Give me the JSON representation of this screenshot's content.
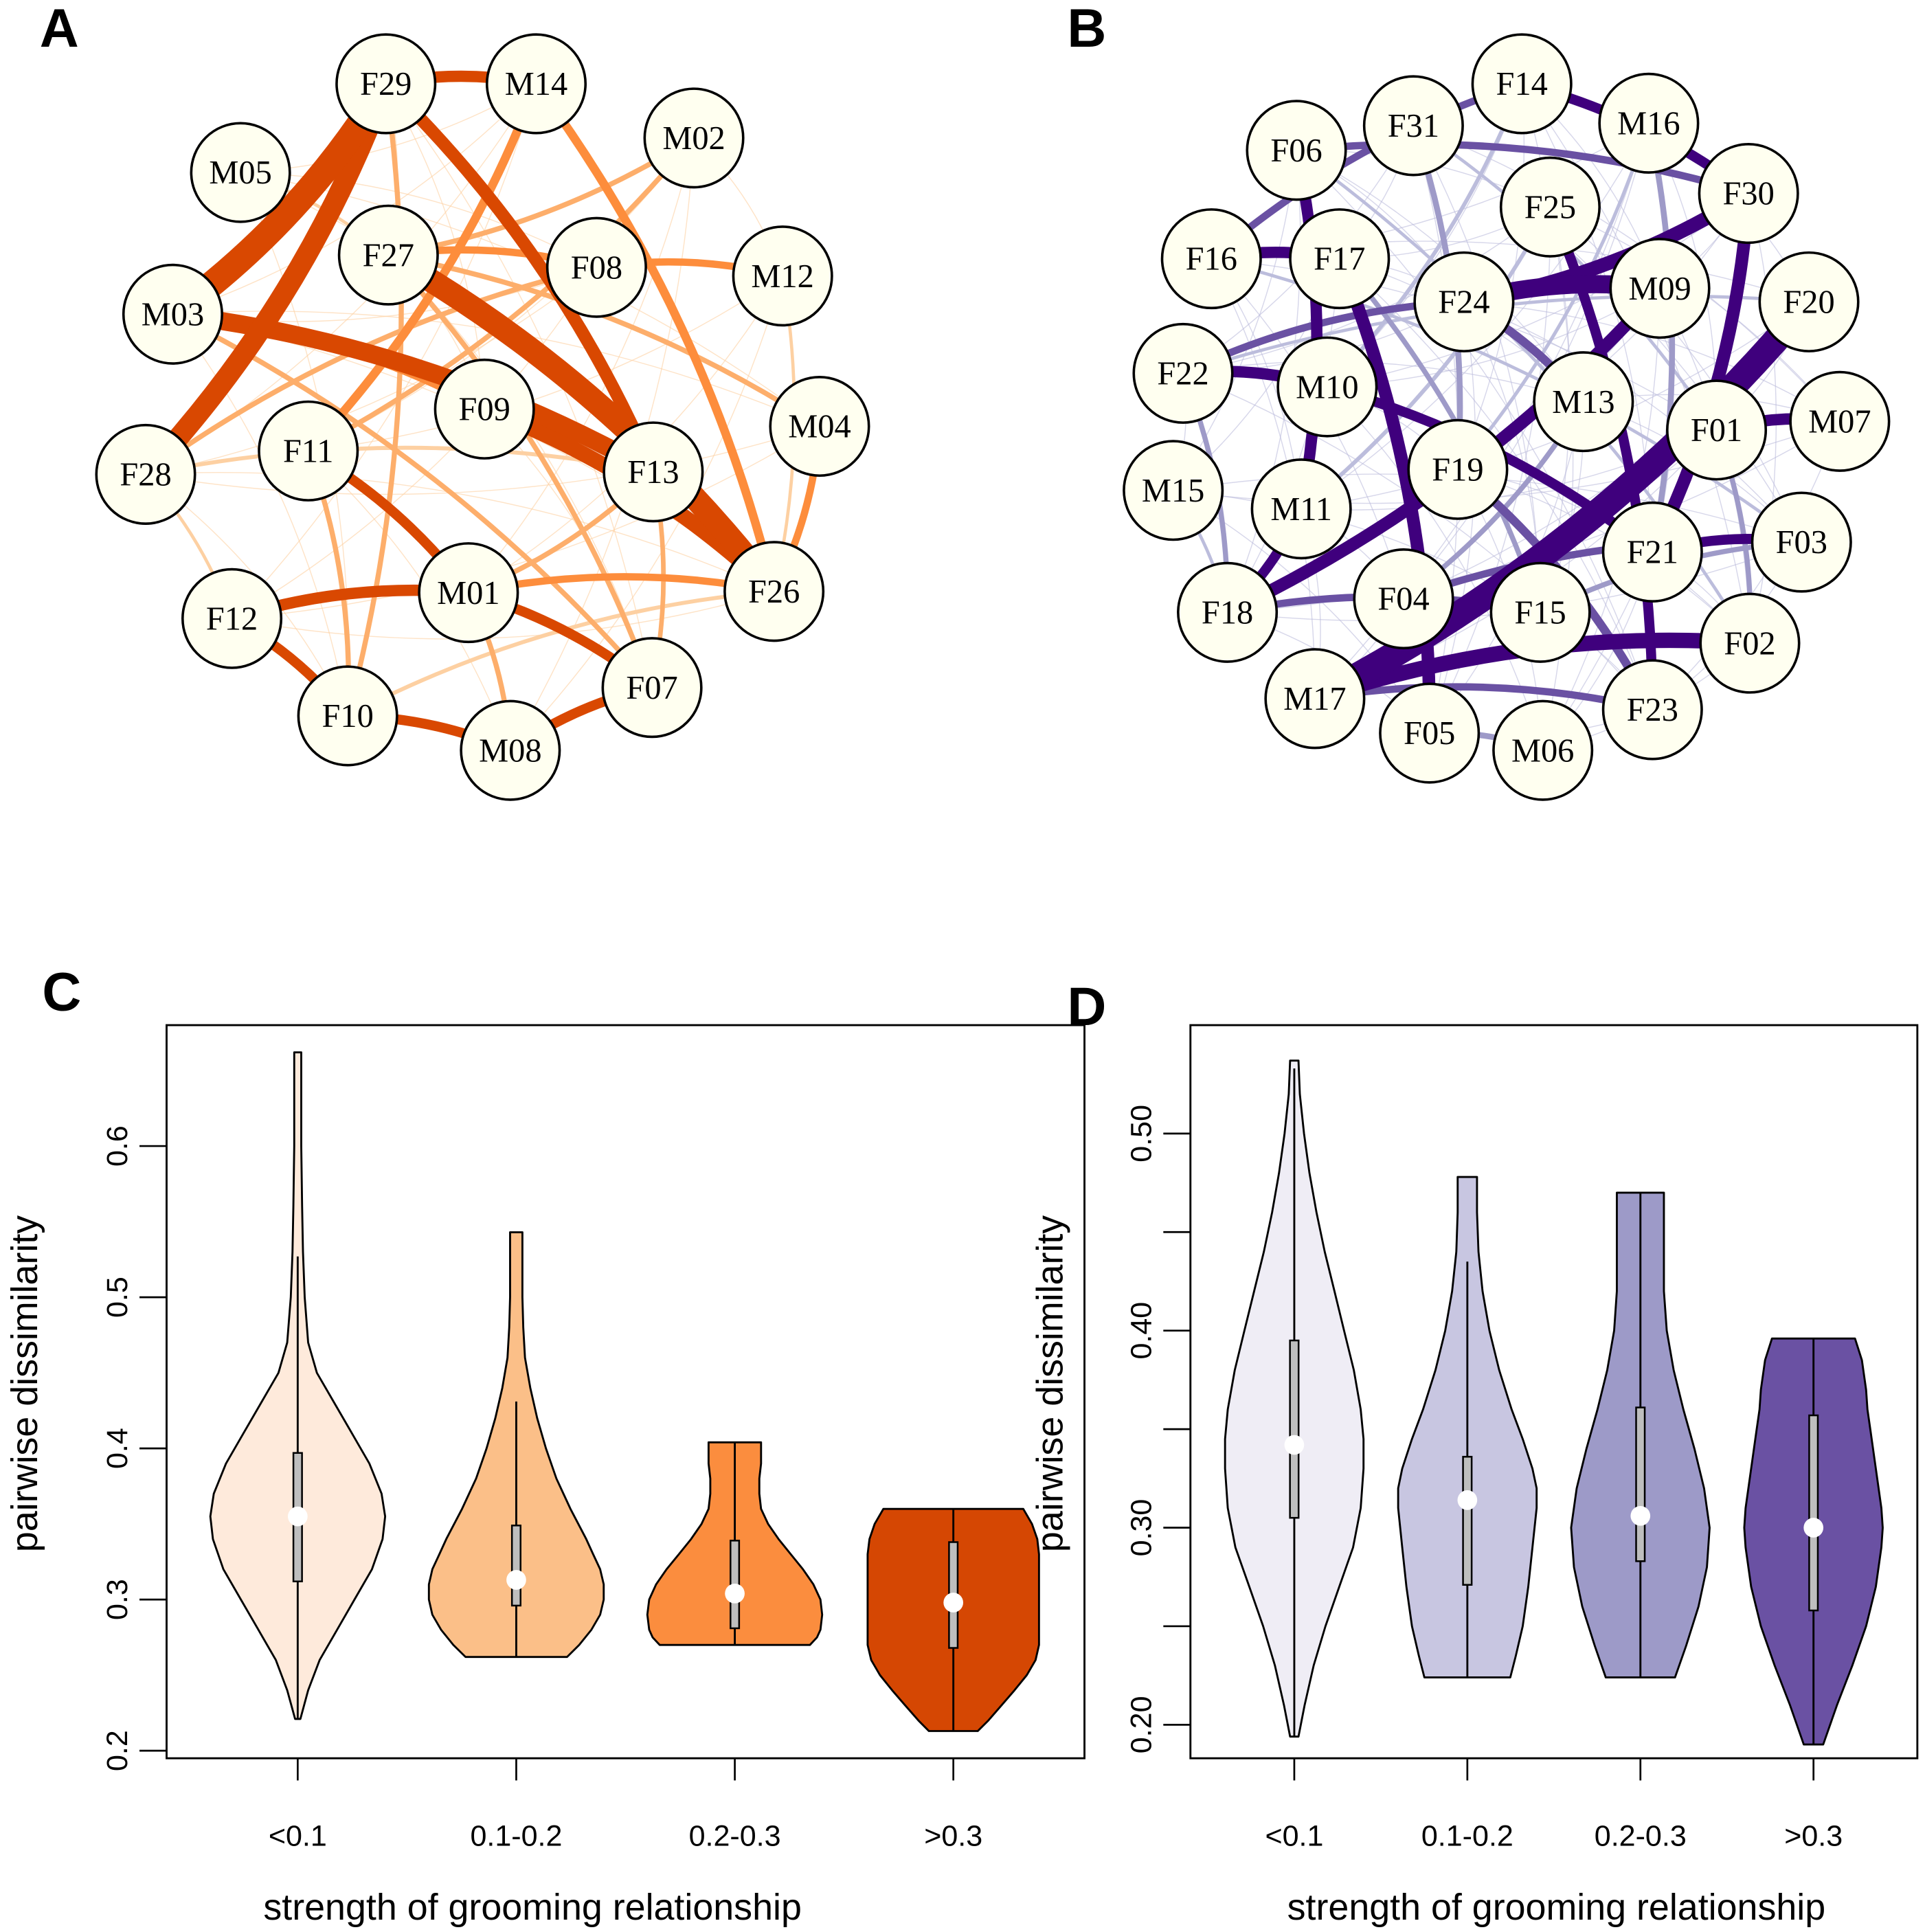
{
  "panels": {
    "A": {
      "letter": "A"
    },
    "B": {
      "letter": "B"
    },
    "C": {
      "letter": "C"
    },
    "D": {
      "letter": "D"
    }
  },
  "networks": [
    {
      "panel": "A",
      "edge_color": "#d94801",
      "edge_palette": [
        "#fdd0a2",
        "#fdae6b",
        "#fd8d3c",
        "#d94801"
      ],
      "node_fill": "#fffff0",
      "nodes": [
        "F29",
        "M14",
        "M02",
        "M05",
        "F27",
        "F08",
        "M12",
        "M03",
        "F09",
        "M04",
        "F11",
        "F28",
        "F13",
        "F26",
        "M01",
        "F12",
        "F07",
        "F10",
        "M08"
      ],
      "strong_edges": [
        {
          "from": "F29",
          "to": "M03",
          "strength": 0.9
        },
        {
          "from": "F29",
          "to": "F28",
          "strength": 0.7
        },
        {
          "from": "M03",
          "to": "F13",
          "strength": 0.6
        },
        {
          "from": "F27",
          "to": "F26",
          "strength": 0.8
        },
        {
          "from": "F09",
          "to": "F26",
          "strength": 0.5
        },
        {
          "from": "F29",
          "to": "F13",
          "strength": 0.4
        },
        {
          "from": "F29",
          "to": "M14",
          "strength": 0.35
        },
        {
          "from": "F12",
          "to": "M01",
          "strength": 0.35
        },
        {
          "from": "F12",
          "to": "F10",
          "strength": 0.3
        },
        {
          "from": "F10",
          "to": "M08",
          "strength": 0.3
        },
        {
          "from": "M08",
          "to": "F07",
          "strength": 0.3
        },
        {
          "from": "M01",
          "to": "F07",
          "strength": 0.3
        },
        {
          "from": "F11",
          "to": "M01",
          "strength": 0.3
        },
        {
          "from": "M14",
          "to": "F26",
          "strength": 0.25
        },
        {
          "from": "M14",
          "to": "F11",
          "strength": 0.25
        },
        {
          "from": "F27",
          "to": "F08",
          "strength": 0.2
        },
        {
          "from": "F08",
          "to": "M12",
          "strength": 0.2
        },
        {
          "from": "M04",
          "to": "F26",
          "strength": 0.2
        },
        {
          "from": "M01",
          "to": "F26",
          "strength": 0.2
        },
        {
          "from": "M03",
          "to": "F09",
          "strength": 0.2
        },
        {
          "from": "M02",
          "to": "F27",
          "strength": 0.12
        },
        {
          "from": "M02",
          "to": "F11",
          "strength": 0.12
        },
        {
          "from": "F27",
          "to": "M04",
          "strength": 0.12
        },
        {
          "from": "F29",
          "to": "F10",
          "strength": 0.12
        },
        {
          "from": "F11",
          "to": "F10",
          "strength": 0.12
        },
        {
          "from": "F27",
          "to": "F07",
          "strength": 0.12
        },
        {
          "from": "M01",
          "to": "M08",
          "strength": 0.12
        },
        {
          "from": "M03",
          "to": "F07",
          "strength": 0.12
        },
        {
          "from": "F28",
          "to": "F08",
          "strength": 0.12
        },
        {
          "from": "F13",
          "to": "M01",
          "strength": 0.12
        },
        {
          "from": "F13",
          "to": "F07",
          "strength": 0.1
        },
        {
          "from": "F28",
          "to": "F13",
          "strength": 0.08
        },
        {
          "from": "F10",
          "to": "F26",
          "strength": 0.08
        },
        {
          "from": "M05",
          "to": "F27",
          "strength": 0.05
        },
        {
          "from": "F28",
          "to": "F12",
          "strength": 0.05
        },
        {
          "from": "M12",
          "to": "F26",
          "strength": 0.05
        }
      ]
    },
    {
      "panel": "B",
      "edge_color": "#3f007d",
      "edge_palette": [
        "#bcbddc",
        "#9e9ac8",
        "#6a51a3",
        "#3f007d"
      ],
      "node_fill": "#fffff0",
      "nodes": [
        "F14",
        "F31",
        "M16",
        "F06",
        "F30",
        "F25",
        "F16",
        "F17",
        "M09",
        "F24",
        "F20",
        "F22",
        "M10",
        "M13",
        "F01",
        "M07",
        "F19",
        "M15",
        "M11",
        "F03",
        "F21",
        "F18",
        "F04",
        "F15",
        "F02",
        "F23",
        "M17",
        "F05",
        "M06"
      ],
      "strong_edges": [
        {
          "from": "F20",
          "to": "M17",
          "strength": 0.9
        },
        {
          "from": "F24",
          "to": "M09",
          "strength": 0.6
        },
        {
          "from": "M17",
          "to": "F02",
          "strength": 0.5
        },
        {
          "from": "F30",
          "to": "F24",
          "strength": 0.45
        },
        {
          "from": "F30",
          "to": "F21",
          "strength": 0.4
        },
        {
          "from": "F17",
          "to": "F05",
          "strength": 0.4
        },
        {
          "from": "M09",
          "to": "F18",
          "strength": 0.4
        },
        {
          "from": "F22",
          "to": "M10",
          "strength": 0.35
        },
        {
          "from": "F16",
          "to": "F17",
          "strength": 0.35
        },
        {
          "from": "F06",
          "to": "M11",
          "strength": 0.35
        },
        {
          "from": "F01",
          "to": "M07",
          "strength": 0.35
        },
        {
          "from": "F14",
          "to": "F30",
          "strength": 0.3
        },
        {
          "from": "F25",
          "to": "F23",
          "strength": 0.3
        },
        {
          "from": "M10",
          "to": "F21",
          "strength": 0.3
        },
        {
          "from": "F21",
          "to": "F03",
          "strength": 0.3
        },
        {
          "from": "M11",
          "to": "F18",
          "strength": 0.3
        },
        {
          "from": "F24",
          "to": "M13",
          "strength": 0.25
        },
        {
          "from": "F19",
          "to": "F23",
          "strength": 0.25
        },
        {
          "from": "F16",
          "to": "F14",
          "strength": 0.2
        },
        {
          "from": "F06",
          "to": "F30",
          "strength": 0.2
        },
        {
          "from": "F22",
          "to": "F24",
          "strength": 0.2
        },
        {
          "from": "F04",
          "to": "F03",
          "strength": 0.2
        },
        {
          "from": "F18",
          "to": "F15",
          "strength": 0.2
        },
        {
          "from": "M17",
          "to": "F23",
          "strength": 0.2
        },
        {
          "from": "F05",
          "to": "M06",
          "strength": 0.15
        },
        {
          "from": "F31",
          "to": "F19",
          "strength": 0.15
        },
        {
          "from": "M16",
          "to": "F21",
          "strength": 0.15
        },
        {
          "from": "F22",
          "to": "F18",
          "strength": 0.12
        },
        {
          "from": "M13",
          "to": "F04",
          "strength": 0.12
        },
        {
          "from": "F01",
          "to": "F02",
          "strength": 0.12
        },
        {
          "from": "F15",
          "to": "F03",
          "strength": 0.12
        },
        {
          "from": "F17",
          "to": "F15",
          "strength": 0.12
        },
        {
          "from": "F14",
          "to": "M10",
          "strength": 0.08
        },
        {
          "from": "F25",
          "to": "M11",
          "strength": 0.08
        },
        {
          "from": "M16",
          "to": "F19",
          "strength": 0.06
        },
        {
          "from": "F06",
          "to": "F02",
          "strength": 0.05
        },
        {
          "from": "F31",
          "to": "F01",
          "strength": 0.05
        },
        {
          "from": "F16",
          "to": "F03",
          "strength": 0.05
        },
        {
          "from": "F22",
          "to": "F20",
          "strength": 0.05
        },
        {
          "from": "M15",
          "to": "F18",
          "strength": 0.05
        }
      ]
    }
  ],
  "chart_data": [
    {
      "panel": "C",
      "type": "violin",
      "title": "",
      "xlabel": "strength of grooming relationship",
      "ylabel": "pairwise dissimilarity",
      "categories": [
        "<0.1",
        "0.1-0.2",
        "0.2-0.3",
        ">0.3"
      ],
      "yticks": [
        0.2,
        0.3,
        0.4,
        0.5,
        0.6
      ],
      "ytick_labels": [
        "0.2",
        "0.3",
        "0.4",
        "0.5",
        "0.6"
      ],
      "ylim": [
        0.195,
        0.68
      ],
      "fill_colors": [
        "#feeadb",
        "#fbbf88",
        "#fb8d3e",
        "#d54703"
      ],
      "series": [
        {
          "name": "<0.1",
          "min": 0.221,
          "max": 0.662,
          "whisker_low": 0.221,
          "whisker_high": 0.527,
          "q1": 0.312,
          "median": 0.355,
          "q3": 0.397,
          "density_y": [
            0.221,
            0.24,
            0.26,
            0.28,
            0.3,
            0.32,
            0.34,
            0.355,
            0.37,
            0.39,
            0.41,
            0.43,
            0.45,
            0.47,
            0.5,
            0.53,
            0.56,
            0.6,
            0.64,
            0.662
          ],
          "density_w": [
            0.03,
            0.12,
            0.25,
            0.45,
            0.65,
            0.85,
            0.97,
            1.0,
            0.96,
            0.82,
            0.62,
            0.42,
            0.22,
            0.12,
            0.08,
            0.06,
            0.05,
            0.04,
            0.04,
            0.04
          ]
        },
        {
          "name": "0.1-0.2",
          "min": 0.262,
          "max": 0.543,
          "whisker_low": 0.262,
          "whisker_high": 0.431,
          "q1": 0.296,
          "median": 0.313,
          "q3": 0.349,
          "density_y": [
            0.262,
            0.27,
            0.28,
            0.29,
            0.3,
            0.31,
            0.32,
            0.33,
            0.34,
            0.36,
            0.38,
            0.4,
            0.42,
            0.44,
            0.46,
            0.48,
            0.5,
            0.52,
            0.543
          ],
          "density_w": [
            0.58,
            0.72,
            0.86,
            0.96,
            1.0,
            1.0,
            0.96,
            0.88,
            0.8,
            0.62,
            0.46,
            0.34,
            0.24,
            0.16,
            0.1,
            0.08,
            0.07,
            0.07,
            0.07
          ]
        },
        {
          "name": "0.2-0.3",
          "min": 0.27,
          "max": 0.404,
          "whisker_low": 0.27,
          "whisker_high": 0.404,
          "q1": 0.281,
          "median": 0.304,
          "q3": 0.339,
          "density_y": [
            0.27,
            0.275,
            0.28,
            0.29,
            0.3,
            0.31,
            0.32,
            0.33,
            0.34,
            0.35,
            0.36,
            0.37,
            0.38,
            0.39,
            0.404
          ],
          "density_w": [
            0.86,
            0.94,
            0.98,
            1.0,
            0.98,
            0.9,
            0.78,
            0.64,
            0.5,
            0.38,
            0.3,
            0.28,
            0.28,
            0.3,
            0.3
          ]
        },
        {
          "name": ">0.3",
          "min": 0.213,
          "max": 0.36,
          "whisker_low": 0.213,
          "whisker_high": 0.36,
          "q1": 0.268,
          "median": 0.298,
          "q3": 0.338,
          "density_y": [
            0.213,
            0.22,
            0.23,
            0.24,
            0.25,
            0.26,
            0.27,
            0.28,
            0.29,
            0.3,
            0.31,
            0.32,
            0.33,
            0.34,
            0.35,
            0.36
          ],
          "density_w": [
            0.28,
            0.4,
            0.55,
            0.7,
            0.84,
            0.94,
            0.98,
            0.98,
            0.98,
            0.98,
            0.98,
            0.98,
            0.98,
            0.96,
            0.9,
            0.8
          ]
        }
      ]
    },
    {
      "panel": "D",
      "type": "violin",
      "title": "",
      "xlabel": "strength of grooming relationship",
      "ylabel": "pairwise dissimilarity",
      "categories": [
        "<0.1",
        "0.1-0.2",
        "0.2-0.3",
        ">0.3"
      ],
      "yticks": [
        0.2,
        0.25,
        0.3,
        0.35,
        0.4,
        0.45,
        0.5
      ],
      "ytick_labels": [
        "0.20",
        "",
        "0.30",
        "",
        "0.40",
        "",
        "0.50"
      ],
      "ylim": [
        0.183,
        0.555
      ],
      "fill_colors": [
        "#efedf5",
        "#c8c6e1",
        "#9d9ac8",
        "#6a51a3"
      ],
      "series": [
        {
          "name": "<0.1",
          "min": 0.194,
          "max": 0.537,
          "whisker_low": 0.194,
          "whisker_high": 0.533,
          "q1": 0.305,
          "median": 0.342,
          "q3": 0.395,
          "density_y": [
            0.194,
            0.21,
            0.23,
            0.25,
            0.27,
            0.29,
            0.31,
            0.33,
            0.345,
            0.36,
            0.38,
            0.4,
            0.42,
            0.44,
            0.46,
            0.48,
            0.5,
            0.52,
            0.537
          ],
          "density_w": [
            0.06,
            0.15,
            0.28,
            0.45,
            0.65,
            0.85,
            0.96,
            1.0,
            1.0,
            0.96,
            0.86,
            0.72,
            0.58,
            0.44,
            0.32,
            0.22,
            0.14,
            0.08,
            0.06
          ]
        },
        {
          "name": "0.1-0.2",
          "min": 0.224,
          "max": 0.478,
          "whisker_low": 0.224,
          "whisker_high": 0.435,
          "q1": 0.271,
          "median": 0.314,
          "q3": 0.336,
          "density_y": [
            0.224,
            0.235,
            0.25,
            0.27,
            0.29,
            0.31,
            0.32,
            0.33,
            0.345,
            0.36,
            0.38,
            0.4,
            0.42,
            0.44,
            0.46,
            0.478
          ],
          "density_w": [
            0.62,
            0.7,
            0.8,
            0.88,
            0.94,
            1.0,
            1.0,
            0.94,
            0.8,
            0.64,
            0.46,
            0.32,
            0.22,
            0.16,
            0.14,
            0.14
          ]
        },
        {
          "name": "0.2-0.3",
          "min": 0.224,
          "max": 0.47,
          "whisker_low": 0.224,
          "whisker_high": 0.47,
          "q1": 0.283,
          "median": 0.306,
          "q3": 0.361,
          "density_y": [
            0.224,
            0.24,
            0.26,
            0.28,
            0.3,
            0.32,
            0.34,
            0.36,
            0.38,
            0.4,
            0.42,
            0.44,
            0.46,
            0.47
          ],
          "density_w": [
            0.5,
            0.66,
            0.84,
            0.96,
            1.0,
            0.92,
            0.78,
            0.62,
            0.48,
            0.38,
            0.34,
            0.34,
            0.34,
            0.34
          ]
        },
        {
          "name": ">0.3",
          "min": 0.19,
          "max": 0.396,
          "whisker_low": 0.19,
          "whisker_high": 0.396,
          "q1": 0.258,
          "median": 0.3,
          "q3": 0.357,
          "density_y": [
            0.19,
            0.21,
            0.23,
            0.25,
            0.27,
            0.29,
            0.3,
            0.31,
            0.33,
            0.35,
            0.36,
            0.37,
            0.385,
            0.396
          ],
          "density_w": [
            0.14,
            0.34,
            0.56,
            0.76,
            0.9,
            0.98,
            1.0,
            0.98,
            0.9,
            0.82,
            0.78,
            0.76,
            0.7,
            0.6
          ]
        }
      ]
    }
  ]
}
